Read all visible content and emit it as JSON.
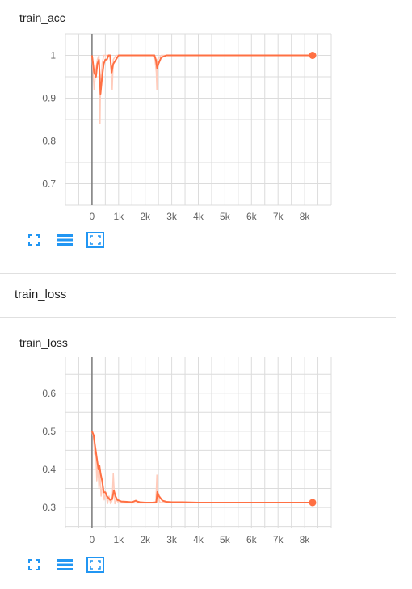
{
  "colors": {
    "accent": "#ff7043",
    "faint": "#ffccbc",
    "grid": "#dcdcdc",
    "axis": "#9e9e9e",
    "icon": "#2196f3"
  },
  "toolbar_icons": [
    "fullscreen-icon",
    "data-table-icon",
    "fit-domain-icon"
  ],
  "section": {
    "title": "train_loss"
  },
  "charts": [
    {
      "card_title": "train_acc",
      "chart_data": {
        "type": "line",
        "title": "train_acc",
        "xlabel": "",
        "ylabel": "",
        "xlim": [
          -1000,
          9000
        ],
        "ylim": [
          0.65,
          1.05
        ],
        "x_ticks": [
          0,
          1000,
          2000,
          3000,
          4000,
          5000,
          6000,
          7000,
          8000
        ],
        "x_tick_labels": [
          "0",
          "1k",
          "2k",
          "3k",
          "4k",
          "5k",
          "6k",
          "7k",
          "8k"
        ],
        "y_ticks": [
          0.7,
          0.8,
          0.9,
          1.0
        ],
        "y_tick_labels": [
          "0.7",
          "0.8",
          "0.9",
          "1"
        ],
        "grid": true,
        "series": [
          {
            "smoothed": true,
            "x": [
              0,
              80,
              150,
              200,
              260,
              320,
              380,
              440,
              500,
              560,
              620,
              680,
              740,
              800,
              900,
              1000,
              1200,
              1500,
              2000,
              2350,
              2400,
              2450,
              2500,
              2600,
              2800,
              3200,
              4000,
              5000,
              6000,
              7000,
              8000,
              8300
            ],
            "y": [
              1.0,
              0.96,
              0.95,
              0.98,
              0.99,
              0.91,
              0.95,
              0.98,
              0.99,
              0.99,
              1.0,
              1.0,
              0.96,
              0.98,
              0.99,
              1.0,
              1.0,
              1.0,
              1.0,
              1.0,
              0.99,
              0.97,
              0.98,
              0.995,
              1.0,
              1.0,
              1.0,
              1.0,
              1.0,
              1.0,
              1.0,
              1.0
            ]
          },
          {
            "raw": true,
            "x": [
              0,
              80,
              150,
              200,
              260,
              300,
              320,
              380,
              440,
              500,
              600,
              680,
              740,
              760,
              800,
              900,
              1000,
              2350,
              2420,
              2440,
              2460,
              2600,
              2800,
              8300
            ],
            "y": [
              1.0,
              0.92,
              0.97,
              0.99,
              1.0,
              0.84,
              0.93,
              0.98,
              1.0,
              1.0,
              1.0,
              1.0,
              0.94,
              0.92,
              0.99,
              1.0,
              1.0,
              1.0,
              0.96,
              0.92,
              0.99,
              1.0,
              1.0,
              1.0
            ]
          }
        ],
        "last_point": {
          "x": 8300,
          "y": 1.0
        }
      }
    },
    {
      "card_title": "train_loss",
      "chart_data": {
        "type": "line",
        "title": "train_loss",
        "xlabel": "",
        "ylabel": "",
        "xlim": [
          -1000,
          9000
        ],
        "ylim": [
          0.245,
          0.695
        ],
        "x_ticks": [
          0,
          1000,
          2000,
          3000,
          4000,
          5000,
          6000,
          7000,
          8000
        ],
        "x_tick_labels": [
          "0",
          "1k",
          "2k",
          "3k",
          "4k",
          "5k",
          "6k",
          "7k",
          "8k"
        ],
        "y_ticks": [
          0.3,
          0.4,
          0.5,
          0.6
        ],
        "y_tick_labels": [
          "0.3",
          "0.4",
          "0.5",
          "0.6"
        ],
        "grid": true,
        "series": [
          {
            "smoothed": true,
            "x": [
              0,
              60,
              120,
              180,
              240,
              280,
              320,
              380,
              440,
              500,
              560,
              620,
              680,
              760,
              820,
              880,
              950,
              1100,
              1300,
              1500,
              1650,
              1700,
              1800,
              2000,
              2300,
              2420,
              2460,
              2520,
              2650,
              2800,
              3000,
              3400,
              4000,
              5000,
              6000,
              7000,
              8000,
              8300
            ],
            "y": [
              0.5,
              0.49,
              0.46,
              0.43,
              0.4,
              0.41,
              0.39,
              0.37,
              0.34,
              0.34,
              0.33,
              0.325,
              0.32,
              0.322,
              0.345,
              0.33,
              0.32,
              0.316,
              0.315,
              0.314,
              0.318,
              0.316,
              0.314,
              0.313,
              0.313,
              0.314,
              0.341,
              0.33,
              0.318,
              0.315,
              0.314,
              0.314,
              0.313,
              0.313,
              0.313,
              0.313,
              0.313,
              0.313
            ]
          },
          {
            "raw": true,
            "x": [
              0,
              60,
              100,
              140,
              180,
              220,
              260,
              300,
              340,
              400,
              460,
              520,
              580,
              640,
              700,
              760,
              800,
              860,
              920,
              1000,
              2400,
              2440,
              2480,
              2560,
              8300
            ],
            "y": [
              0.5,
              0.48,
              0.44,
              0.45,
              0.37,
              0.41,
              0.35,
              0.39,
              0.33,
              0.36,
              0.32,
              0.34,
              0.31,
              0.33,
              0.31,
              0.32,
              0.39,
              0.31,
              0.32,
              0.312,
              0.312,
              0.385,
              0.33,
              0.313,
              0.313
            ]
          }
        ],
        "last_point": {
          "x": 8300,
          "y": 0.313
        }
      }
    }
  ]
}
